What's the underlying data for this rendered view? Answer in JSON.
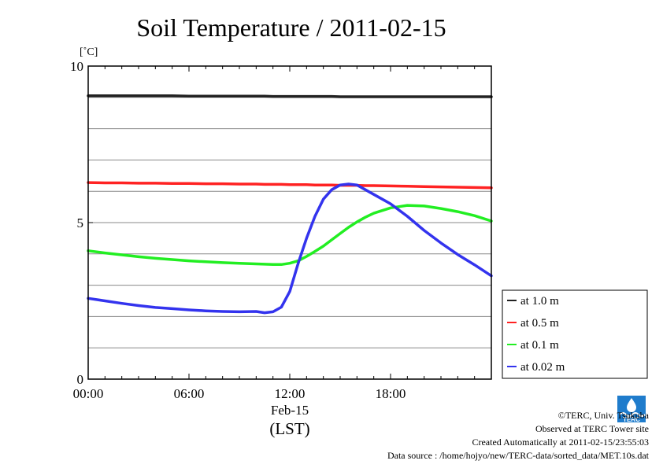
{
  "chart_data": {
    "type": "line",
    "title": "Soil Temperature / 2011-02-15",
    "ylabel": "[˚C]",
    "xlabel_date": "Feb-15",
    "xlabel_unit": "(LST)",
    "ylim": [
      0,
      10
    ],
    "xlim": [
      0,
      24
    ],
    "x_unit": "hours (LST)",
    "y_ticks": [
      {
        "value": 0,
        "label": "0"
      },
      {
        "value": 5,
        "label": "5"
      },
      {
        "value": 10,
        "label": "10"
      }
    ],
    "y_gridlines": [
      1,
      2,
      3,
      4,
      5,
      6,
      7,
      8,
      9
    ],
    "x_ticks": [
      {
        "value": 0,
        "label": "00:00"
      },
      {
        "value": 6,
        "label": "06:00"
      },
      {
        "value": 12,
        "label": "12:00"
      },
      {
        "value": 18,
        "label": "18:00"
      }
    ],
    "x": [
      0,
      1,
      2,
      3,
      4,
      5,
      6,
      7,
      8,
      9,
      10,
      10.5,
      11,
      11.5,
      12,
      12.5,
      13,
      13.5,
      14,
      14.5,
      15,
      15.5,
      16,
      16.5,
      17,
      18,
      19,
      20,
      21,
      22,
      23,
      24
    ],
    "series": [
      {
        "name": "at 1.0 m",
        "color": "#222222",
        "values": [
          9.05,
          9.05,
          9.05,
          9.05,
          9.05,
          9.05,
          9.04,
          9.04,
          9.04,
          9.04,
          9.04,
          9.04,
          9.03,
          9.03,
          9.03,
          9.03,
          9.03,
          9.03,
          9.03,
          9.03,
          9.02,
          9.02,
          9.02,
          9.02,
          9.02,
          9.02,
          9.02,
          9.02,
          9.02,
          9.02,
          9.02,
          9.02
        ]
      },
      {
        "name": "at 0.5 m",
        "color": "#ff2222",
        "values": [
          6.28,
          6.27,
          6.27,
          6.26,
          6.26,
          6.25,
          6.25,
          6.24,
          6.24,
          6.23,
          6.23,
          6.22,
          6.22,
          6.22,
          6.21,
          6.21,
          6.21,
          6.2,
          6.2,
          6.2,
          6.19,
          6.19,
          6.19,
          6.18,
          6.18,
          6.17,
          6.16,
          6.15,
          6.14,
          6.13,
          6.12,
          6.11
        ]
      },
      {
        "name": "at 0.1 m",
        "color": "#22ee22",
        "values": [
          4.1,
          4.03,
          3.97,
          3.91,
          3.86,
          3.82,
          3.78,
          3.75,
          3.72,
          3.7,
          3.68,
          3.67,
          3.66,
          3.66,
          3.7,
          3.78,
          3.92,
          4.08,
          4.25,
          4.45,
          4.65,
          4.85,
          5.02,
          5.17,
          5.3,
          5.47,
          5.55,
          5.53,
          5.45,
          5.35,
          5.22,
          5.05
        ]
      },
      {
        "name": "at 0.02 m",
        "color": "#3333ee",
        "values": [
          2.58,
          2.5,
          2.42,
          2.35,
          2.29,
          2.25,
          2.21,
          2.18,
          2.16,
          2.15,
          2.16,
          2.12,
          2.15,
          2.3,
          2.8,
          3.7,
          4.5,
          5.2,
          5.75,
          6.05,
          6.2,
          6.23,
          6.2,
          6.05,
          5.9,
          5.6,
          5.2,
          4.75,
          4.35,
          3.98,
          3.65,
          3.3
        ]
      }
    ],
    "legend_position": "right",
    "grid": true
  },
  "footer": {
    "copyright": "©TERC, Univ. Tsukuba",
    "observed": "Observed at TERC Tower site",
    "created": "Created Automatically at 2011-02-15/23:55:03",
    "source": "Data source : /home/hojyo/new/TERC-data/sorted_data/MET.10s.dat"
  },
  "logo": {
    "text": "TERC",
    "color": "#1f7ccc"
  }
}
